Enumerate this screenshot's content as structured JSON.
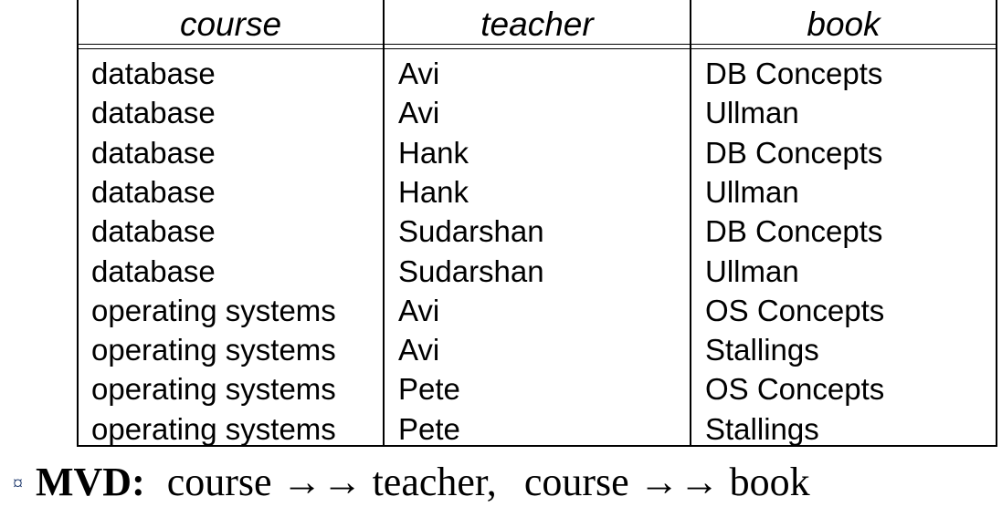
{
  "relation": {
    "columns": [
      "course",
      "teacher",
      "book"
    ],
    "rows": [
      [
        "database",
        "Avi",
        "DB Concepts"
      ],
      [
        "database",
        "Avi",
        "Ullman"
      ],
      [
        "database",
        "Hank",
        "DB Concepts"
      ],
      [
        "database",
        "Hank",
        "Ullman"
      ],
      [
        "database",
        "Sudarshan",
        "DB Concepts"
      ],
      [
        "database",
        "Sudarshan",
        "Ullman"
      ],
      [
        "operating systems",
        "Avi",
        "OS Concepts"
      ],
      [
        "operating systems",
        "Avi",
        "Stallings"
      ],
      [
        "operating systems",
        "Pete",
        "OS Concepts"
      ],
      [
        "operating systems",
        "Pete",
        "Stallings"
      ]
    ]
  },
  "mvd": {
    "bullet": "¤",
    "label": "MVD:",
    "dep1": "course →→ teacher,",
    "dep2": "course →→ book"
  }
}
